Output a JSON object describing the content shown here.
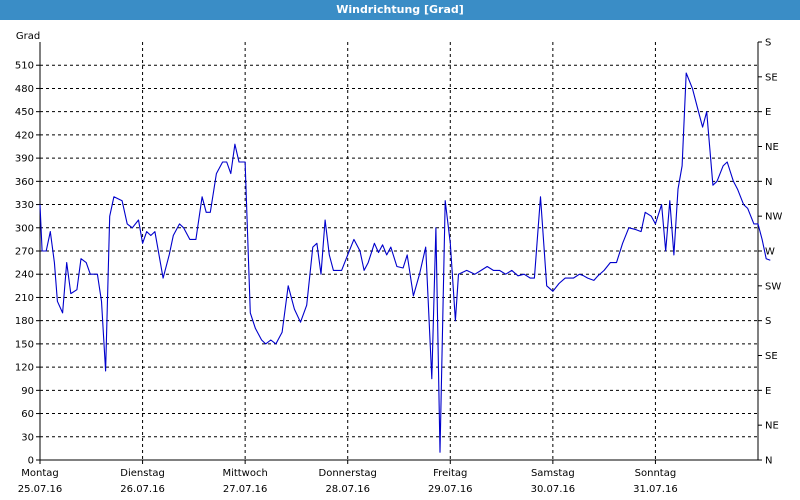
{
  "window": {
    "title": "Windrichtung [Grad]"
  },
  "colors": {
    "titlebar": "#3a8dc6",
    "series": "#0000cc",
    "grid": "#000000"
  },
  "chart_data": {
    "type": "line",
    "title": "Windrichtung [Grad]",
    "ylabel": "Grad",
    "ylim": [
      0,
      540
    ],
    "yticks": [
      0,
      30,
      60,
      90,
      120,
      150,
      180,
      210,
      240,
      270,
      300,
      330,
      360,
      390,
      420,
      450,
      480,
      510
    ],
    "right_axis_labels": [
      {
        "value": 0,
        "label": "N"
      },
      {
        "value": 45,
        "label": "NE"
      },
      {
        "value": 90,
        "label": "E"
      },
      {
        "value": 135,
        "label": "SE"
      },
      {
        "value": 180,
        "label": "S"
      },
      {
        "value": 225,
        "label": "SW"
      },
      {
        "value": 270,
        "label": "W"
      },
      {
        "value": 315,
        "label": "NW"
      },
      {
        "value": 360,
        "label": "N"
      },
      {
        "value": 405,
        "label": "NE"
      },
      {
        "value": 450,
        "label": "E"
      },
      {
        "value": 495,
        "label": "SE"
      },
      {
        "value": 540,
        "label": "S"
      }
    ],
    "xlim": [
      0,
      7
    ],
    "days": [
      {
        "day": "Montag",
        "date": "25.07.16",
        "x": 0
      },
      {
        "day": "Dienstag",
        "date": "26.07.16",
        "x": 1
      },
      {
        "day": "Mittwoch",
        "date": "27.07.16",
        "x": 2
      },
      {
        "day": "Donnerstag",
        "date": "28.07.16",
        "x": 3
      },
      {
        "day": "Freitag",
        "date": "29.07.16",
        "x": 4
      },
      {
        "day": "Samstag",
        "date": "30.07.16",
        "x": 5
      },
      {
        "day": "Sonntag",
        "date": "31.07.16",
        "x": 6
      }
    ],
    "grid": true,
    "series": [
      {
        "points": [
          [
            0.0,
            330
          ],
          [
            0.02,
            270
          ],
          [
            0.06,
            270
          ],
          [
            0.1,
            295
          ],
          [
            0.14,
            255
          ],
          [
            0.17,
            205
          ],
          [
            0.22,
            190
          ],
          [
            0.26,
            255
          ],
          [
            0.3,
            215
          ],
          [
            0.36,
            220
          ],
          [
            0.4,
            260
          ],
          [
            0.45,
            255
          ],
          [
            0.49,
            240
          ],
          [
            0.56,
            240
          ],
          [
            0.6,
            205
          ],
          [
            0.64,
            115
          ],
          [
            0.68,
            315
          ],
          [
            0.72,
            340
          ],
          [
            0.8,
            335
          ],
          [
            0.85,
            305
          ],
          [
            0.9,
            300
          ],
          [
            0.96,
            310
          ],
          [
            1.0,
            280
          ],
          [
            1.04,
            295
          ],
          [
            1.08,
            290
          ],
          [
            1.12,
            295
          ],
          [
            1.2,
            235
          ],
          [
            1.26,
            265
          ],
          [
            1.3,
            290
          ],
          [
            1.36,
            305
          ],
          [
            1.4,
            300
          ],
          [
            1.46,
            285
          ],
          [
            1.52,
            285
          ],
          [
            1.58,
            340
          ],
          [
            1.62,
            320
          ],
          [
            1.66,
            320
          ],
          [
            1.72,
            370
          ],
          [
            1.78,
            385
          ],
          [
            1.82,
            385
          ],
          [
            1.86,
            370
          ],
          [
            1.9,
            408
          ],
          [
            1.94,
            385
          ],
          [
            2.0,
            385
          ],
          [
            2.05,
            190
          ],
          [
            2.1,
            170
          ],
          [
            2.16,
            155
          ],
          [
            2.2,
            150
          ],
          [
            2.25,
            155
          ],
          [
            2.3,
            150
          ],
          [
            2.36,
            165
          ],
          [
            2.42,
            225
          ],
          [
            2.48,
            195
          ],
          [
            2.54,
            178
          ],
          [
            2.6,
            200
          ],
          [
            2.66,
            275
          ],
          [
            2.7,
            280
          ],
          [
            2.74,
            240
          ],
          [
            2.78,
            310
          ],
          [
            2.82,
            265
          ],
          [
            2.86,
            245
          ],
          [
            2.94,
            245
          ],
          [
            3.0,
            265
          ],
          [
            3.06,
            285
          ],
          [
            3.12,
            270
          ],
          [
            3.16,
            245
          ],
          [
            3.2,
            255
          ],
          [
            3.26,
            280
          ],
          [
            3.3,
            268
          ],
          [
            3.34,
            278
          ],
          [
            3.38,
            265
          ],
          [
            3.42,
            275
          ],
          [
            3.48,
            250
          ],
          [
            3.54,
            248
          ],
          [
            3.58,
            265
          ],
          [
            3.64,
            212
          ],
          [
            3.7,
            240
          ],
          [
            3.76,
            275
          ],
          [
            3.82,
            105
          ],
          [
            3.86,
            300
          ],
          [
            3.9,
            10
          ],
          [
            3.95,
            335
          ],
          [
            4.0,
            280
          ],
          [
            4.05,
            180
          ],
          [
            4.08,
            240
          ],
          [
            4.16,
            245
          ],
          [
            4.24,
            240
          ],
          [
            4.3,
            245
          ],
          [
            4.36,
            250
          ],
          [
            4.42,
            245
          ],
          [
            4.48,
            245
          ],
          [
            4.54,
            240
          ],
          [
            4.6,
            245
          ],
          [
            4.66,
            238
          ],
          [
            4.72,
            240
          ],
          [
            4.78,
            235
          ],
          [
            4.82,
            235
          ],
          [
            4.88,
            340
          ],
          [
            4.94,
            225
          ],
          [
            5.0,
            218
          ],
          [
            5.06,
            228
          ],
          [
            5.12,
            235
          ],
          [
            5.2,
            235
          ],
          [
            5.26,
            240
          ],
          [
            5.3,
            238
          ],
          [
            5.34,
            235
          ],
          [
            5.4,
            232
          ],
          [
            5.44,
            238
          ],
          [
            5.5,
            245
          ],
          [
            5.56,
            255
          ],
          [
            5.62,
            255
          ],
          [
            5.68,
            280
          ],
          [
            5.74,
            300
          ],
          [
            5.8,
            298
          ],
          [
            5.86,
            295
          ],
          [
            5.9,
            320
          ],
          [
            5.96,
            315
          ],
          [
            6.0,
            305
          ],
          [
            6.06,
            330
          ],
          [
            6.1,
            270
          ],
          [
            6.14,
            335
          ],
          [
            6.18,
            265
          ],
          [
            6.22,
            350
          ],
          [
            6.26,
            380
          ],
          [
            6.3,
            500
          ],
          [
            6.36,
            480
          ],
          [
            6.42,
            450
          ],
          [
            6.46,
            430
          ],
          [
            6.5,
            450
          ],
          [
            6.56,
            355
          ],
          [
            6.6,
            360
          ],
          [
            6.66,
            380
          ],
          [
            6.7,
            385
          ],
          [
            6.76,
            360
          ],
          [
            6.8,
            350
          ],
          [
            6.86,
            330
          ],
          [
            6.9,
            325
          ],
          [
            6.96,
            305
          ],
          [
            7.0,
            305
          ],
          [
            7.04,
            285
          ],
          [
            7.08,
            260
          ],
          [
            7.12,
            258
          ]
        ]
      }
    ]
  }
}
